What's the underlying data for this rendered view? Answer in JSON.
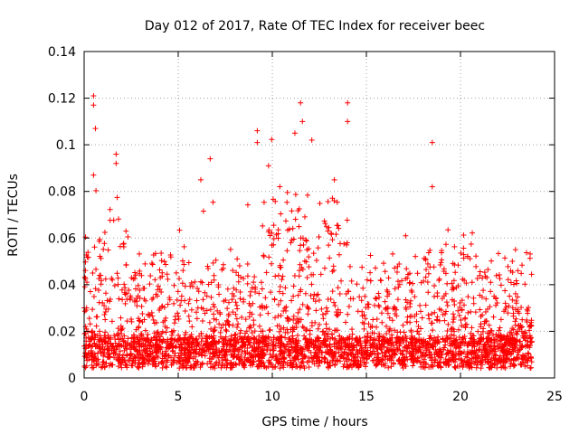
{
  "chart_data": {
    "type": "scatter",
    "title": "Day 012 of 2017, Rate Of TEC Index for receiver beec",
    "xlabel": "GPS time / hours",
    "ylabel": "ROTI / TECUs",
    "xlim": [
      0,
      25
    ],
    "ylim": [
      0,
      0.14
    ],
    "grid": true,
    "x_ticks": [
      0,
      5,
      10,
      15,
      20,
      25
    ],
    "x_tick_labels": [
      "0",
      "5",
      "10",
      "15",
      "20",
      "25"
    ],
    "y_ticks": [
      0,
      0.02,
      0.04,
      0.06,
      0.08,
      0.1,
      0.12,
      0.14
    ],
    "y_tick_labels": [
      "0",
      "0.02",
      "0.04",
      "0.06",
      "0.08",
      "0.1",
      "0.12",
      "0.14"
    ],
    "marker": "+",
    "color": "#ff0000",
    "series": [
      {
        "name": "ROTI",
        "time_range_hours": [
          0,
          23.8
        ],
        "typical_baseline": 0.012,
        "notable_peaks": [
          {
            "x": 0.5,
            "y": 0.121
          },
          {
            "x": 0.5,
            "y": 0.117
          },
          {
            "x": 0.6,
            "y": 0.107
          },
          {
            "x": 0.5,
            "y": 0.087
          },
          {
            "x": 1.7,
            "y": 0.096
          },
          {
            "x": 1.7,
            "y": 0.092
          },
          {
            "x": 6.2,
            "y": 0.085
          },
          {
            "x": 6.7,
            "y": 0.094
          },
          {
            "x": 9.2,
            "y": 0.106
          },
          {
            "x": 9.2,
            "y": 0.101
          },
          {
            "x": 9.8,
            "y": 0.091
          },
          {
            "x": 11.5,
            "y": 0.118
          },
          {
            "x": 11.6,
            "y": 0.11
          },
          {
            "x": 11.2,
            "y": 0.105
          },
          {
            "x": 12.1,
            "y": 0.102
          },
          {
            "x": 14.0,
            "y": 0.118
          },
          {
            "x": 14.0,
            "y": 0.11
          },
          {
            "x": 18.5,
            "y": 0.101
          },
          {
            "x": 18.5,
            "y": 0.082
          },
          {
            "x": 13.3,
            "y": 0.085
          },
          {
            "x": 10.4,
            "y": 0.082
          }
        ],
        "active_intervals": [
          {
            "start": 0.0,
            "end": 2.5,
            "typical_max": 0.055
          },
          {
            "start": 9.5,
            "end": 14.0,
            "typical_max": 0.065
          },
          {
            "start": 18.0,
            "end": 21.0,
            "typical_max": 0.05
          }
        ]
      }
    ]
  }
}
